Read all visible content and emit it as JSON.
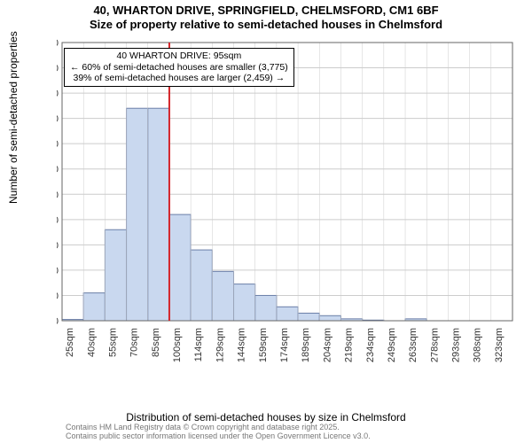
{
  "titles": {
    "line1": "40, WHARTON DRIVE, SPRINGFIELD, CHELMSFORD, CM1 6BF",
    "line2": "Size of property relative to semi-detached houses in Chelmsford"
  },
  "ylabel": "Number of semi-detached properties",
  "xlabel": "Distribution of semi-detached houses by size in Chelmsford",
  "attribution": {
    "l1": "Contains HM Land Registry data © Crown copyright and database right 2025.",
    "l2": "Contains public sector information licensed under the Open Government Licence v3.0."
  },
  "chart": {
    "type": "histogram",
    "x_categories": [
      "25sqm",
      "40sqm",
      "55sqm",
      "70sqm",
      "85sqm",
      "100sqm",
      "114sqm",
      "129sqm",
      "144sqm",
      "159sqm",
      "174sqm",
      "189sqm",
      "204sqm",
      "219sqm",
      "234sqm",
      "249sqm",
      "263sqm",
      "278sqm",
      "293sqm",
      "308sqm",
      "323sqm"
    ],
    "values": [
      10,
      220,
      720,
      1680,
      1680,
      840,
      560,
      390,
      290,
      200,
      110,
      60,
      40,
      15,
      5,
      2,
      15,
      0,
      0,
      0,
      0
    ],
    "ylim": [
      0,
      2200
    ],
    "ytick_step": 200,
    "bar_fill": "#c9d8ef",
    "bar_stroke": "#6b7fa8",
    "grid_color": "#cccccc",
    "axis_color": "#666666",
    "tick_label_color": "#333333",
    "tick_fontsize": 11,
    "background_color": "#ffffff",
    "marker_line": {
      "x_index_between": [
        4,
        5
      ],
      "color": "#d4252a",
      "width": 2
    },
    "annotation": {
      "line1": "40 WHARTON DRIVE: 95sqm",
      "line2": "← 60% of semi-detached houses are smaller (3,775)",
      "line3": "39% of semi-detached houses are larger (2,459) →",
      "border_color": "#000000",
      "bg_color": "#ffffff",
      "fontsize": 10.5
    }
  }
}
